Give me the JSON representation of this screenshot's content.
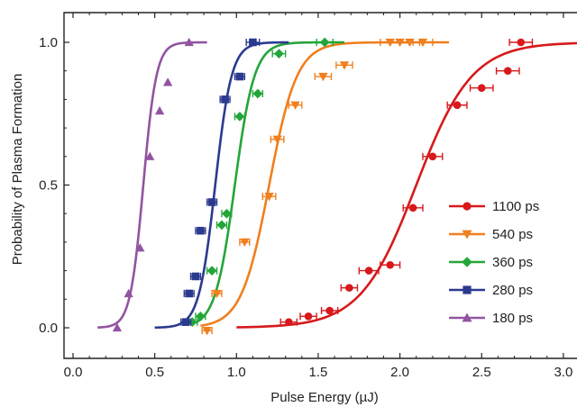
{
  "chart_data": {
    "type": "scatter",
    "xlabel": "Pulse Energy (µJ)",
    "ylabel": "Probability of Plasma Formation",
    "xlim": [
      0.0,
      3.0
    ],
    "ylim": [
      -0.05,
      1.07
    ],
    "xticks": [
      "0.0",
      "0.5",
      "1.0",
      "1.5",
      "2.0",
      "2.5",
      "3.0"
    ],
    "yticks": [
      "0.0",
      "0.5",
      "1.0"
    ],
    "legend_position": "right",
    "series": [
      {
        "name": "1100 ps",
        "color": "#d7191c",
        "marker": "circle",
        "fit": {
          "x50": 2.1,
          "width": 0.17,
          "x_start": 1.0
        },
        "points": [
          {
            "x": 1.32,
            "y": 0.02,
            "xerr": 0.05
          },
          {
            "x": 1.44,
            "y": 0.04,
            "xerr": 0.05
          },
          {
            "x": 1.57,
            "y": 0.06,
            "xerr": 0.05
          },
          {
            "x": 1.69,
            "y": 0.14,
            "xerr": 0.05
          },
          {
            "x": 1.81,
            "y": 0.2,
            "xerr": 0.06
          },
          {
            "x": 1.94,
            "y": 0.22,
            "xerr": 0.06
          },
          {
            "x": 2.08,
            "y": 0.42,
            "xerr": 0.06
          },
          {
            "x": 2.2,
            "y": 0.6,
            "xerr": 0.06
          },
          {
            "x": 2.35,
            "y": 0.78,
            "xerr": 0.06
          },
          {
            "x": 2.5,
            "y": 0.84,
            "xerr": 0.07
          },
          {
            "x": 2.66,
            "y": 0.9,
            "xerr": 0.07
          },
          {
            "x": 2.74,
            "y": 1.0,
            "xerr": 0.07
          }
        ]
      },
      {
        "name": "540 ps",
        "color": "#f07f1e",
        "marker": "triangle-down",
        "fit": {
          "x50": 1.2,
          "width": 0.085,
          "x_start": 0.78,
          "x_end": 2.3
        },
        "points": [
          {
            "x": 0.82,
            "y": -0.01,
            "xerr": 0.03
          },
          {
            "x": 0.88,
            "y": 0.12,
            "xerr": 0.03
          },
          {
            "x": 1.05,
            "y": 0.3,
            "xerr": 0.03
          },
          {
            "x": 1.2,
            "y": 0.46,
            "xerr": 0.04
          },
          {
            "x": 1.25,
            "y": 0.66,
            "xerr": 0.04
          },
          {
            "x": 1.36,
            "y": 0.78,
            "xerr": 0.04
          },
          {
            "x": 1.53,
            "y": 0.88,
            "xerr": 0.05
          },
          {
            "x": 1.66,
            "y": 0.92,
            "xerr": 0.05
          },
          {
            "x": 1.94,
            "y": 1.0,
            "xerr": 0.06
          },
          {
            "x": 2.0,
            "y": 1.0,
            "xerr": 0.06
          },
          {
            "x": 2.06,
            "y": 1.0,
            "xerr": 0.06
          },
          {
            "x": 2.14,
            "y": 1.0,
            "xerr": 0.06
          }
        ]
      },
      {
        "name": "360 ps",
        "color": "#23a639",
        "marker": "diamond",
        "fit": {
          "x50": 0.99,
          "width": 0.06,
          "x_start": 0.75,
          "x_end": 1.66
        },
        "points": [
          {
            "x": 0.73,
            "y": 0.02,
            "xerr": 0.03
          },
          {
            "x": 0.78,
            "y": 0.04,
            "xerr": 0.03
          },
          {
            "x": 0.85,
            "y": 0.2,
            "xerr": 0.03
          },
          {
            "x": 0.91,
            "y": 0.36,
            "xerr": 0.03
          },
          {
            "x": 0.94,
            "y": 0.4,
            "xerr": 0.03
          },
          {
            "x": 1.02,
            "y": 0.74,
            "xerr": 0.03
          },
          {
            "x": 1.13,
            "y": 0.82,
            "xerr": 0.03
          },
          {
            "x": 1.26,
            "y": 0.96,
            "xerr": 0.04
          },
          {
            "x": 1.54,
            "y": 1.0,
            "xerr": 0.05
          }
        ]
      },
      {
        "name": "280 ps",
        "color": "#2b3a8f",
        "marker": "square",
        "fit": {
          "x50": 0.87,
          "width": 0.05,
          "x_start": 0.5,
          "x_end": 1.32
        },
        "points": [
          {
            "x": 0.69,
            "y": 0.02,
            "xerr": 0.03
          },
          {
            "x": 0.71,
            "y": 0.12,
            "xerr": 0.03
          },
          {
            "x": 0.75,
            "y": 0.18,
            "xerr": 0.03
          },
          {
            "x": 0.78,
            "y": 0.34,
            "xerr": 0.03
          },
          {
            "x": 0.85,
            "y": 0.44,
            "xerr": 0.03
          },
          {
            "x": 0.93,
            "y": 0.8,
            "xerr": 0.03
          },
          {
            "x": 1.02,
            "y": 0.88,
            "xerr": 0.03
          },
          {
            "x": 1.1,
            "y": 1.0,
            "xerr": 0.04
          }
        ]
      },
      {
        "name": "180 ps",
        "color": "#9254a0",
        "marker": "triangle-up",
        "fit": {
          "x50": 0.43,
          "width": 0.04,
          "x_start": 0.15,
          "x_end": 0.82
        },
        "points": [
          {
            "x": 0.27,
            "y": 0.0,
            "xerr": 0.0
          },
          {
            "x": 0.34,
            "y": 0.12,
            "xerr": 0.0
          },
          {
            "x": 0.41,
            "y": 0.28,
            "xerr": 0.0
          },
          {
            "x": 0.47,
            "y": 0.6,
            "xerr": 0.0
          },
          {
            "x": 0.53,
            "y": 0.76,
            "xerr": 0.0
          },
          {
            "x": 0.58,
            "y": 0.86,
            "xerr": 0.0
          },
          {
            "x": 0.71,
            "y": 1.0,
            "xerr": 0.0
          }
        ]
      }
    ]
  }
}
